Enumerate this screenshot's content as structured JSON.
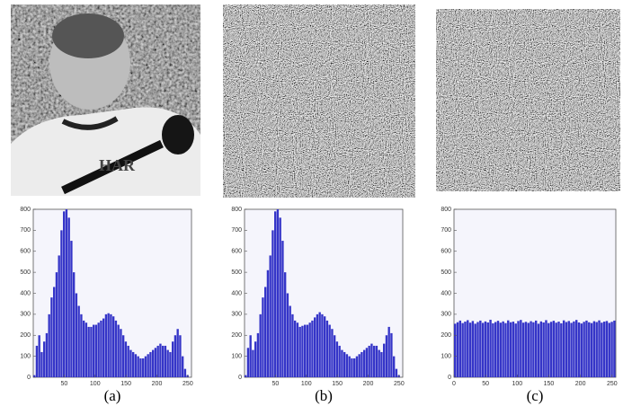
{
  "chart_data": [
    {
      "type": "histogram",
      "caption": "(a)",
      "color": "#3535c8",
      "xlim": [
        0,
        256
      ],
      "ylim": [
        0,
        800
      ],
      "xticks": [
        50,
        100,
        150,
        200,
        250
      ],
      "yticks": [
        0,
        100,
        200,
        300,
        400,
        500,
        600,
        700,
        800
      ],
      "bins": [
        0,
        4,
        8,
        12,
        16,
        20,
        24,
        28,
        32,
        36,
        40,
        44,
        48,
        52,
        56,
        60,
        64,
        68,
        72,
        76,
        80,
        84,
        88,
        92,
        96,
        100,
        104,
        108,
        112,
        116,
        120,
        124,
        128,
        132,
        136,
        140,
        144,
        148,
        152,
        156,
        160,
        164,
        168,
        172,
        176,
        180,
        184,
        188,
        192,
        196,
        200,
        204,
        208,
        212,
        216,
        220,
        224,
        228,
        232,
        236,
        240,
        244,
        248,
        252,
        256
      ],
      "values": [
        10,
        150,
        200,
        120,
        170,
        210,
        300,
        380,
        430,
        500,
        580,
        700,
        790,
        800,
        760,
        650,
        500,
        400,
        340,
        300,
        270,
        260,
        240,
        240,
        250,
        250,
        260,
        270,
        280,
        300,
        305,
        300,
        290,
        270,
        250,
        230,
        200,
        170,
        150,
        130,
        120,
        110,
        100,
        90,
        90,
        100,
        110,
        120,
        130,
        140,
        150,
        160,
        150,
        150,
        130,
        120,
        170,
        200,
        230,
        200,
        100,
        40,
        10,
        0
      ]
    },
    {
      "type": "histogram",
      "caption": "(b)",
      "color": "#3535c8",
      "xlim": [
        0,
        256
      ],
      "ylim": [
        0,
        800
      ],
      "xticks": [
        50,
        100,
        150,
        200,
        250
      ],
      "yticks": [
        0,
        100,
        200,
        300,
        400,
        500,
        600,
        700,
        800
      ],
      "bins": [
        0,
        4,
        8,
        12,
        16,
        20,
        24,
        28,
        32,
        36,
        40,
        44,
        48,
        52,
        56,
        60,
        64,
        68,
        72,
        76,
        80,
        84,
        88,
        92,
        96,
        100,
        104,
        108,
        112,
        116,
        120,
        124,
        128,
        132,
        136,
        140,
        144,
        148,
        152,
        156,
        160,
        164,
        168,
        172,
        176,
        180,
        184,
        188,
        192,
        196,
        200,
        204,
        208,
        212,
        216,
        220,
        224,
        228,
        232,
        236,
        240,
        244,
        248,
        252,
        256
      ],
      "values": [
        10,
        140,
        200,
        130,
        170,
        210,
        300,
        380,
        430,
        510,
        580,
        700,
        790,
        800,
        760,
        650,
        500,
        400,
        340,
        300,
        270,
        260,
        240,
        245,
        250,
        250,
        260,
        270,
        285,
        300,
        310,
        300,
        290,
        270,
        250,
        230,
        200,
        170,
        150,
        130,
        120,
        110,
        100,
        90,
        90,
        100,
        110,
        120,
        130,
        140,
        150,
        160,
        150,
        150,
        130,
        120,
        160,
        200,
        240,
        210,
        100,
        40,
        10,
        0
      ]
    },
    {
      "type": "histogram",
      "caption": "(c)",
      "color": "#3535c8",
      "xlim": [
        0,
        256
      ],
      "ylim": [
        0,
        800
      ],
      "xticks": [
        0,
        50,
        100,
        150,
        200,
        250
      ],
      "yticks": [
        0,
        100,
        200,
        300,
        400,
        500,
        600,
        700,
        800
      ],
      "bins": [
        0,
        4,
        8,
        12,
        16,
        20,
        24,
        28,
        32,
        36,
        40,
        44,
        48,
        52,
        56,
        60,
        64,
        68,
        72,
        76,
        80,
        84,
        88,
        92,
        96,
        100,
        104,
        108,
        112,
        116,
        120,
        124,
        128,
        132,
        136,
        140,
        144,
        148,
        152,
        156,
        160,
        164,
        168,
        172,
        176,
        180,
        184,
        188,
        192,
        196,
        200,
        204,
        208,
        212,
        216,
        220,
        224,
        228,
        232,
        236,
        240,
        244,
        248,
        252,
        256
      ],
      "values": [
        255,
        262,
        270,
        258,
        265,
        272,
        260,
        268,
        255,
        263,
        270,
        259,
        266,
        261,
        274,
        257,
        263,
        269,
        260,
        266,
        258,
        271,
        262,
        265,
        256,
        268,
        273,
        260,
        264,
        259,
        267,
        262,
        270,
        255,
        266,
        261,
        272,
        258,
        264,
        269,
        260,
        265,
        257,
        271,
        263,
        268,
        259,
        266,
        273,
        261,
        256,
        264,
        270,
        262,
        258,
        267,
        263,
        271,
        260,
        265,
        268,
        259,
        264,
        270
      ]
    }
  ]
}
